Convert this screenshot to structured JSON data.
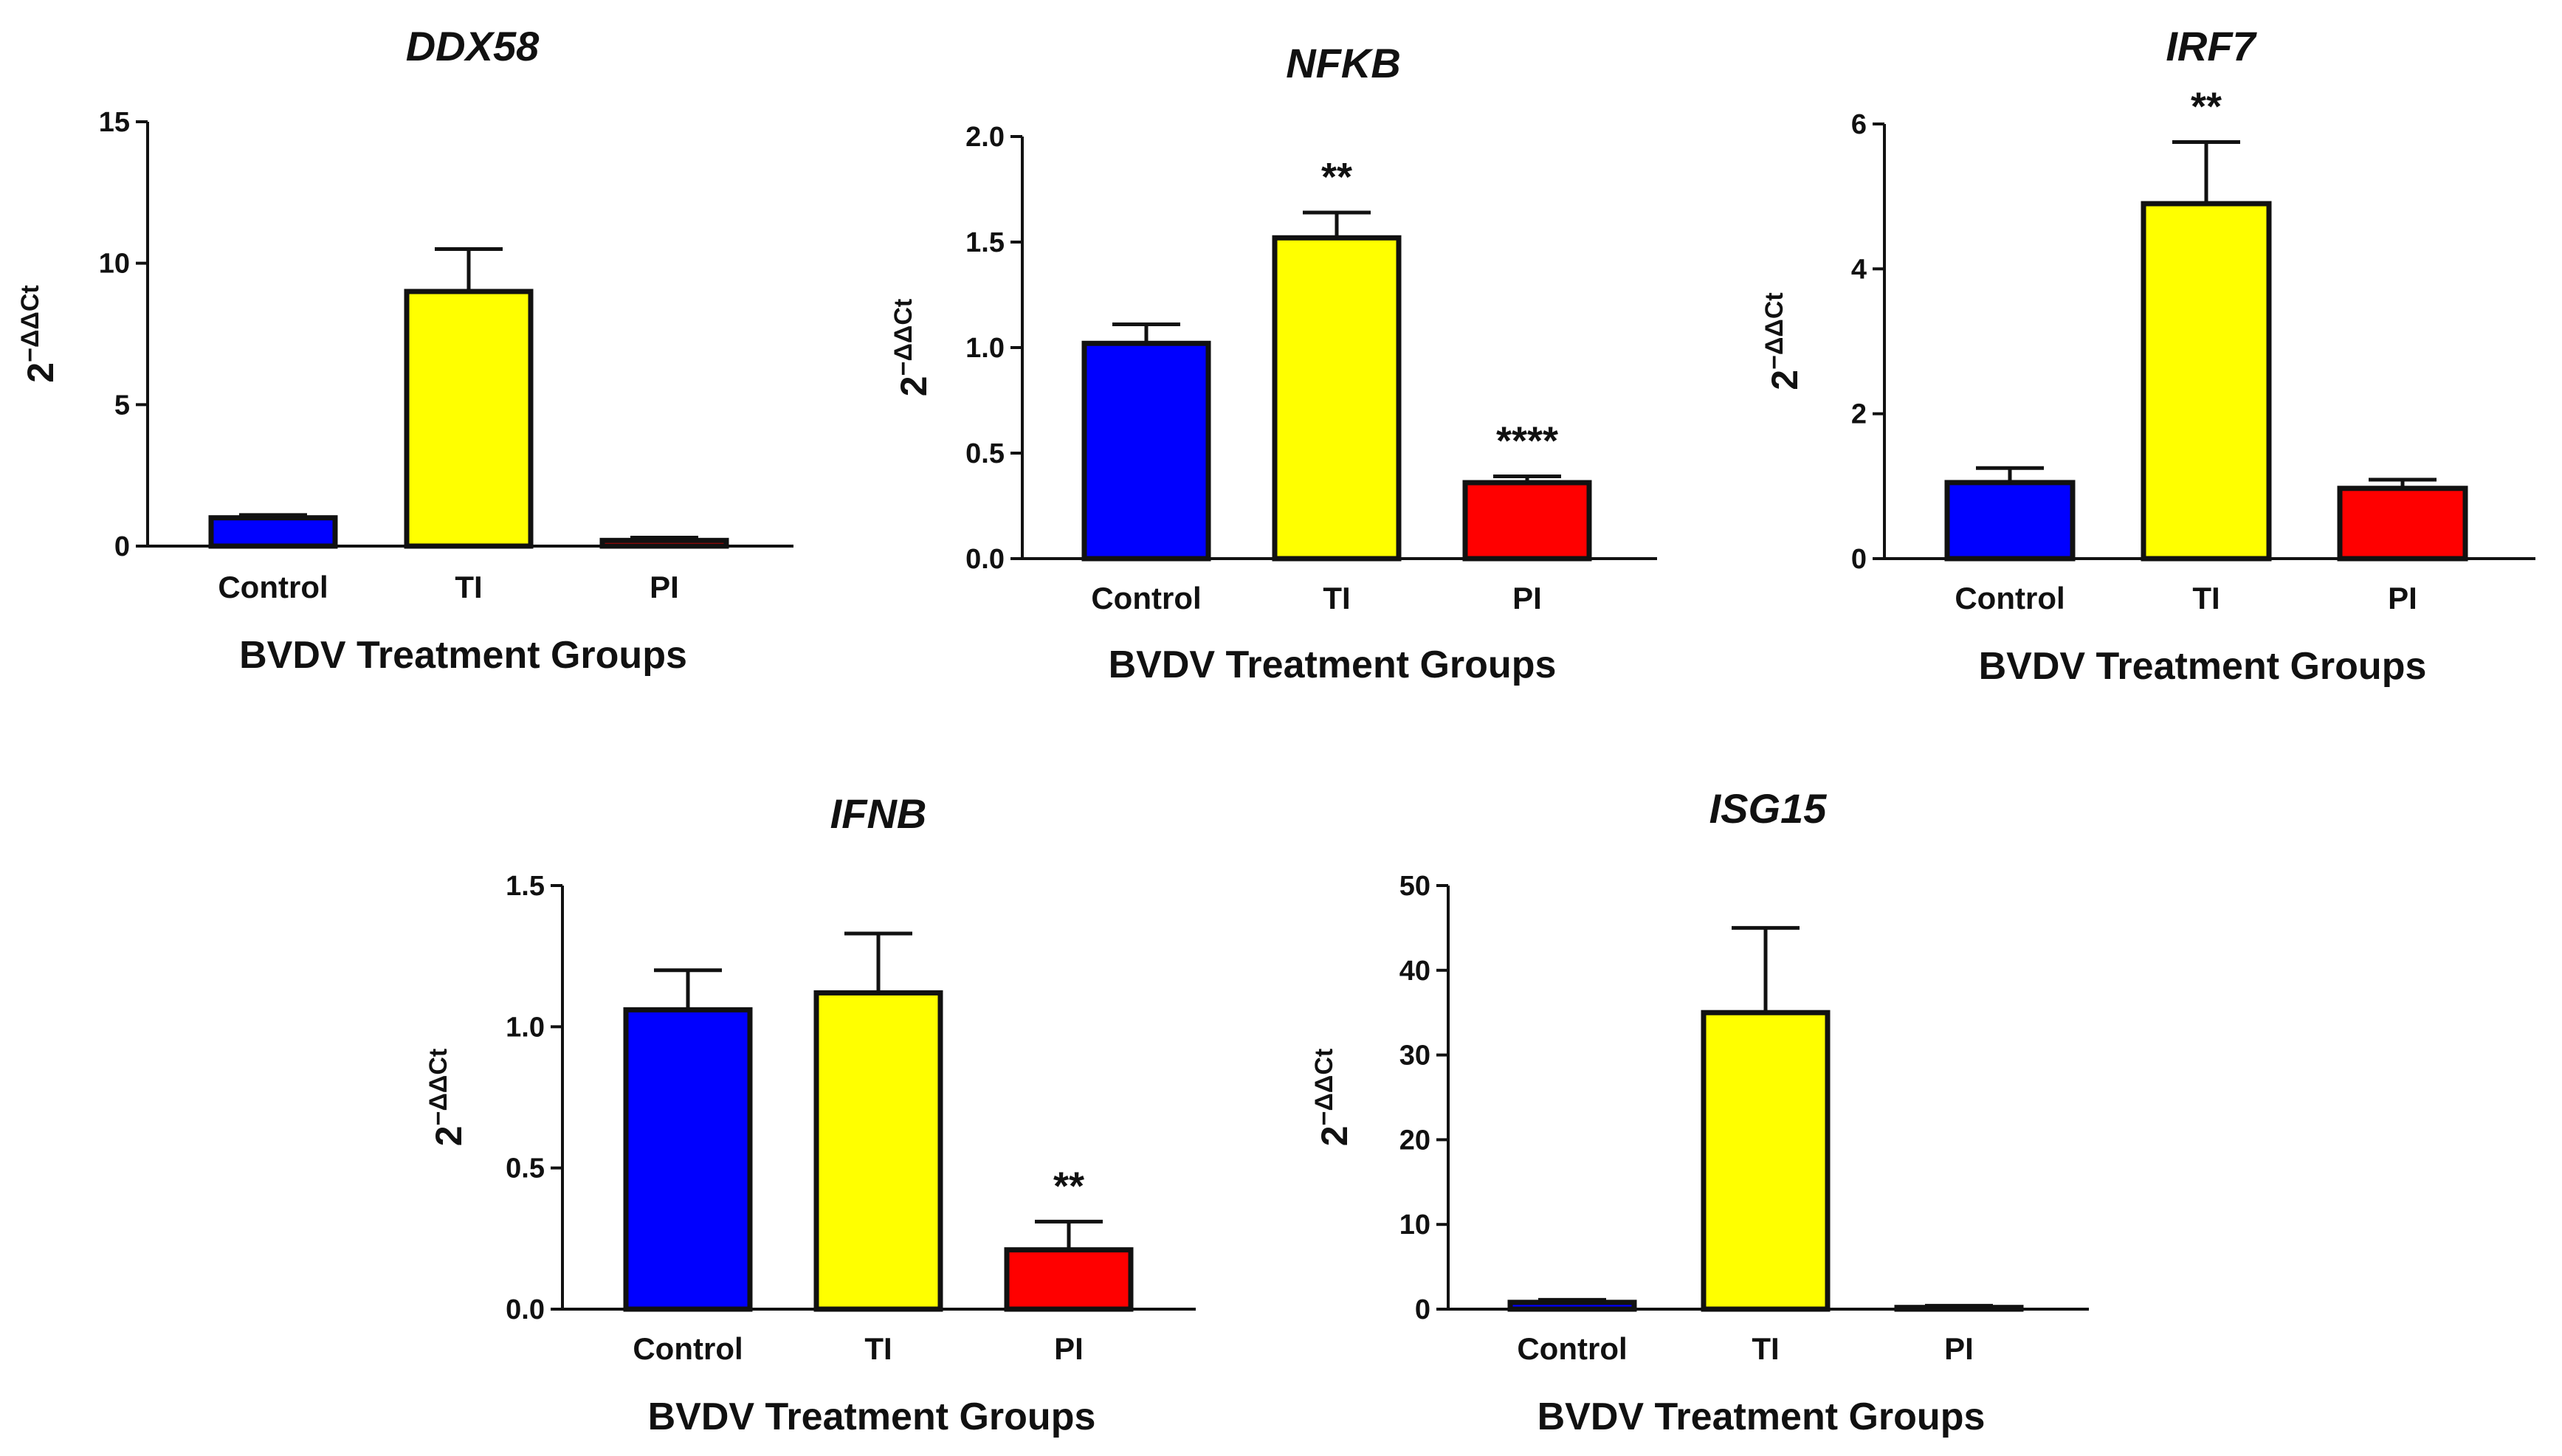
{
  "chart_data": [
    {
      "type": "bar",
      "title": "DDX58",
      "xlabel": "BVDV Treatment Groups",
      "ylabel": "2−ΔΔCt",
      "ylabel_base": "2",
      "ylabel_sup": "−ΔΔCt",
      "categories": [
        "Control",
        "TI",
        "PI"
      ],
      "values": [
        1.0,
        9.0,
        0.2
      ],
      "errors": [
        0.1,
        1.5,
        0.1
      ],
      "significance": [
        "",
        "",
        ""
      ],
      "ylim": [
        0,
        15
      ],
      "yticks": [
        0,
        5,
        10,
        15
      ],
      "ytick_labels": [
        "0",
        "5",
        "10",
        "15"
      ],
      "colors": [
        "#0000ff",
        "#ffff00",
        "#ff0000"
      ]
    },
    {
      "type": "bar",
      "title": "NFKB",
      "xlabel": "BVDV Treatment Groups",
      "ylabel": "2−ΔΔCt",
      "ylabel_base": "2",
      "ylabel_sup": "−ΔΔCt",
      "categories": [
        "Control",
        "TI",
        "PI"
      ],
      "values": [
        1.02,
        1.52,
        0.36
      ],
      "errors": [
        0.09,
        0.12,
        0.03
      ],
      "significance": [
        "",
        "**",
        "****"
      ],
      "ylim": [
        0,
        2.0
      ],
      "yticks": [
        0,
        0.5,
        1.0,
        1.5,
        2.0
      ],
      "ytick_labels": [
        "0.0",
        "0.5",
        "1.0",
        "1.5",
        "2.0"
      ],
      "colors": [
        "#0000ff",
        "#ffff00",
        "#ff0000"
      ]
    },
    {
      "type": "bar",
      "title": "IRF7",
      "xlabel": "BVDV Treatment Groups",
      "ylabel": "2−ΔΔCt",
      "ylabel_base": "2",
      "ylabel_sup": "−ΔΔCt",
      "categories": [
        "Control",
        "TI",
        "PI"
      ],
      "values": [
        1.05,
        4.9,
        0.97
      ],
      "errors": [
        0.2,
        0.85,
        0.12
      ],
      "significance": [
        "",
        "**",
        ""
      ],
      "ylim": [
        0,
        6
      ],
      "yticks": [
        0,
        2,
        4,
        6
      ],
      "ytick_labels": [
        "0",
        "2",
        "4",
        "6"
      ],
      "colors": [
        "#0000ff",
        "#ffff00",
        "#ff0000"
      ]
    },
    {
      "type": "bar",
      "title": "IFNB",
      "xlabel": "BVDV Treatment Groups",
      "ylabel": "2−ΔΔCt",
      "ylabel_base": "2",
      "ylabel_sup": "−ΔΔCt",
      "categories": [
        "Control",
        "TI",
        "PI"
      ],
      "values": [
        1.06,
        1.12,
        0.21
      ],
      "errors": [
        0.14,
        0.21,
        0.1
      ],
      "significance": [
        "",
        "",
        "**"
      ],
      "ylim": [
        0,
        1.5
      ],
      "yticks": [
        0,
        0.5,
        1.0,
        1.5
      ],
      "ytick_labels": [
        "0.0",
        "0.5",
        "1.0",
        "1.5"
      ],
      "colors": [
        "#0000ff",
        "#ffff00",
        "#ff0000"
      ]
    },
    {
      "type": "bar",
      "title": "ISG15",
      "xlabel": "BVDV Treatment Groups",
      "ylabel": "2−ΔΔCt",
      "ylabel_base": "2",
      "ylabel_sup": "−ΔΔCt",
      "categories": [
        "Control",
        "TI",
        "PI"
      ],
      "values": [
        0.8,
        35.0,
        0.2
      ],
      "errors": [
        0.3,
        10.0,
        0.2
      ],
      "significance": [
        "",
        "",
        ""
      ],
      "ylim": [
        0,
        50
      ],
      "yticks": [
        0,
        10,
        20,
        30,
        40,
        50
      ],
      "ytick_labels": [
        "0",
        "10",
        "20",
        "30",
        "40",
        "50"
      ],
      "colors": [
        "#0000ff",
        "#ffff00",
        "#ff0000"
      ]
    }
  ]
}
